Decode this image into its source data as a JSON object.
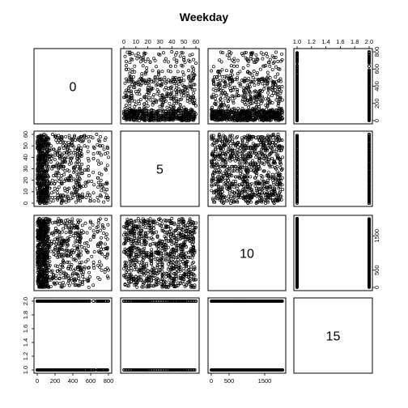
{
  "chart_data": {
    "type": "scatter-matrix",
    "title": "Weekday",
    "diagonal_labels": [
      "0",
      "5",
      "10",
      "15"
    ],
    "variables": [
      {
        "label": "0",
        "range": [
          0,
          800
        ],
        "ticks": [
          "0",
          "200",
          "400",
          "600",
          "800"
        ]
      },
      {
        "label": "5",
        "range": [
          0,
          60
        ],
        "ticks": [
          "0",
          "10",
          "20",
          "30",
          "40",
          "50",
          "60"
        ]
      },
      {
        "label": "10",
        "range": [
          0,
          2000
        ],
        "ticks": [
          "0",
          "500",
          "1500"
        ]
      },
      {
        "label": "15",
        "range": [
          1.0,
          2.0
        ],
        "ticks": [
          "1.0",
          "1.2",
          "1.4",
          "1.6",
          "1.8",
          "2.0"
        ]
      }
    ],
    "top_axis_ticks": {
      "panel_2": [
        "0",
        "10",
        "20",
        "30",
        "40",
        "50",
        "60"
      ],
      "panel_4": [
        "1.0",
        "1.2",
        "1.4",
        "1.6",
        "1.8",
        "2.0"
      ]
    },
    "bottom_axis_ticks": {
      "panel_1": [
        "0",
        "200",
        "400",
        "600",
        "800"
      ],
      "panel_3": [
        "0",
        "500",
        "1500"
      ]
    },
    "left_axis_ticks": {
      "row_2": [
        "0",
        "10",
        "20",
        "30",
        "40",
        "50",
        "60"
      ],
      "row_4": [
        "1.0",
        "1.2",
        "1.4",
        "1.6",
        "1.8",
        "2.0"
      ]
    },
    "right_axis_ticks": {
      "row_1": [
        "0",
        "200",
        "400",
        "600",
        "800"
      ],
      "row_3": [
        "0",
        "500",
        "1500"
      ]
    },
    "marker": "open-circle",
    "color": "#000000"
  }
}
